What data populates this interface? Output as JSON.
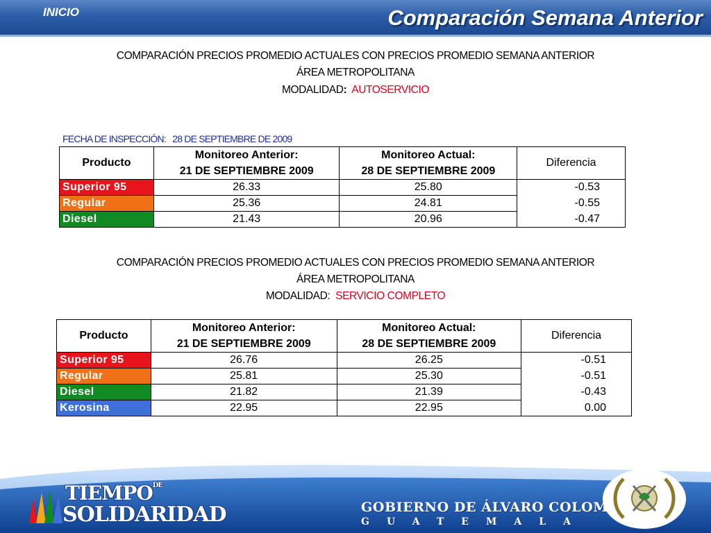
{
  "header": {
    "nav_label": "INICIO",
    "title": "Comparación Semana Anterior"
  },
  "section1": {
    "line1": "COMPARACIÓN PRECIOS PROMEDIO ACTUALES CON PRECIOS PROMEDIO SEMANA ANTERIOR",
    "line2": "ÁREA METROPOLITANA",
    "modalidad_label": "MODALIDAD",
    "modalidad_colon": ":",
    "modalidad_value": "AUTOSERVICIO",
    "fecha_label": "FECHA  DE INSPECCIÓN:",
    "fecha_value": "28  DE SEPTIEMBRE DE  2009",
    "table": {
      "col_producto": "Producto",
      "col_anterior_1": "Monitoreo Anterior:",
      "col_anterior_2": "21 DE SEPTIEMBRE 2009",
      "col_actual_1": "Monitoreo Actual:",
      "col_actual_2": "28 DE SEPTIEMBRE  2009",
      "col_diferencia": "Diferencia",
      "rows": [
        {
          "producto": "Superior 95",
          "anterior": "26.33",
          "actual": "25.80",
          "diferencia": "-0.53",
          "color": "#e8141c"
        },
        {
          "producto": "Regular",
          "anterior": "25.36",
          "actual": "24.81",
          "diferencia": "-0.55",
          "color": "#f07017"
        },
        {
          "producto": "Diesel",
          "anterior": "21.43",
          "actual": "20.96",
          "diferencia": "-0.47",
          "color": "#118a24"
        }
      ]
    }
  },
  "section2": {
    "line1": "COMPARACIÓN PRECIOS PROMEDIO ACTUALES CON PRECIOS PROMEDIO SEMANA ANTERIOR",
    "line2": "ÁREA METROPOLITANA",
    "modalidad_label": "MODALIDAD:",
    "modalidad_value": "SERVICIO COMPLETO",
    "table": {
      "col_producto": "Producto",
      "col_anterior_1": "Monitoreo Anterior:",
      "col_anterior_2": "21 DE SEPTIEMBRE 2009",
      "col_actual_1": "Monitoreo Actual:",
      "col_actual_2": "28 DE SEPTIEMBRE  2009",
      "col_diferencia": "Diferencia",
      "rows": [
        {
          "producto": "Superior 95",
          "anterior": "26.76",
          "actual": "26.25",
          "diferencia": "-0.51",
          "color": "#e8141c"
        },
        {
          "producto": "Regular",
          "anterior": "25.81",
          "actual": "25.30",
          "diferencia": "-0.51",
          "color": "#f07017"
        },
        {
          "producto": "Diesel",
          "anterior": "21.82",
          "actual": "21.39",
          "diferencia": "-0.43",
          "color": "#118a24"
        },
        {
          "producto": "Kerosina",
          "anterior": "22.95",
          "actual": "22.95",
          "diferencia": "0.00",
          "color": "#3f6fd8"
        }
      ]
    }
  },
  "footer": {
    "logo_left_1": "TIEMPO",
    "logo_left_de": "DE",
    "logo_left_2": "SOLIDARIDAD",
    "gob_line1": "GOBIERNO DE ÁLVARO COLOM",
    "gob_line2": "GUATEMALA"
  },
  "colors": {
    "header_blue": "#2d5ea8",
    "accent_red": "#e0001b",
    "fecha_blue": "#1a2e9c"
  }
}
